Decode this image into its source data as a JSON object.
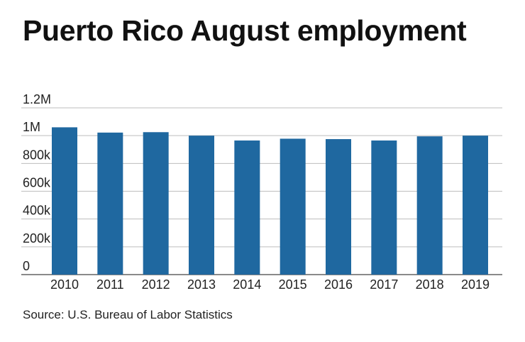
{
  "title": "Puerto Rico August employment",
  "source": "Source: U.S. Bureau of Labor Statistics",
  "colors": {
    "bar": "#1f68a0",
    "grid": "#bdbdbd"
  },
  "chart_data": {
    "type": "bar",
    "title": "Puerto Rico August employment",
    "xlabel": "",
    "ylabel": "",
    "categories": [
      "2010",
      "2011",
      "2012",
      "2013",
      "2014",
      "2015",
      "2016",
      "2017",
      "2018",
      "2019"
    ],
    "values": [
      1060000,
      1022000,
      1025000,
      1000000,
      965000,
      978000,
      975000,
      965000,
      995000,
      1000000
    ],
    "ylim": [
      0,
      1200000
    ],
    "y_ticks": [
      0,
      200000,
      400000,
      600000,
      800000,
      1000000,
      1200000
    ],
    "y_tick_labels": [
      "0",
      "200k",
      "400k",
      "600k",
      "800k",
      "1M",
      "1.2M"
    ],
    "grid": true,
    "legend": "none"
  }
}
